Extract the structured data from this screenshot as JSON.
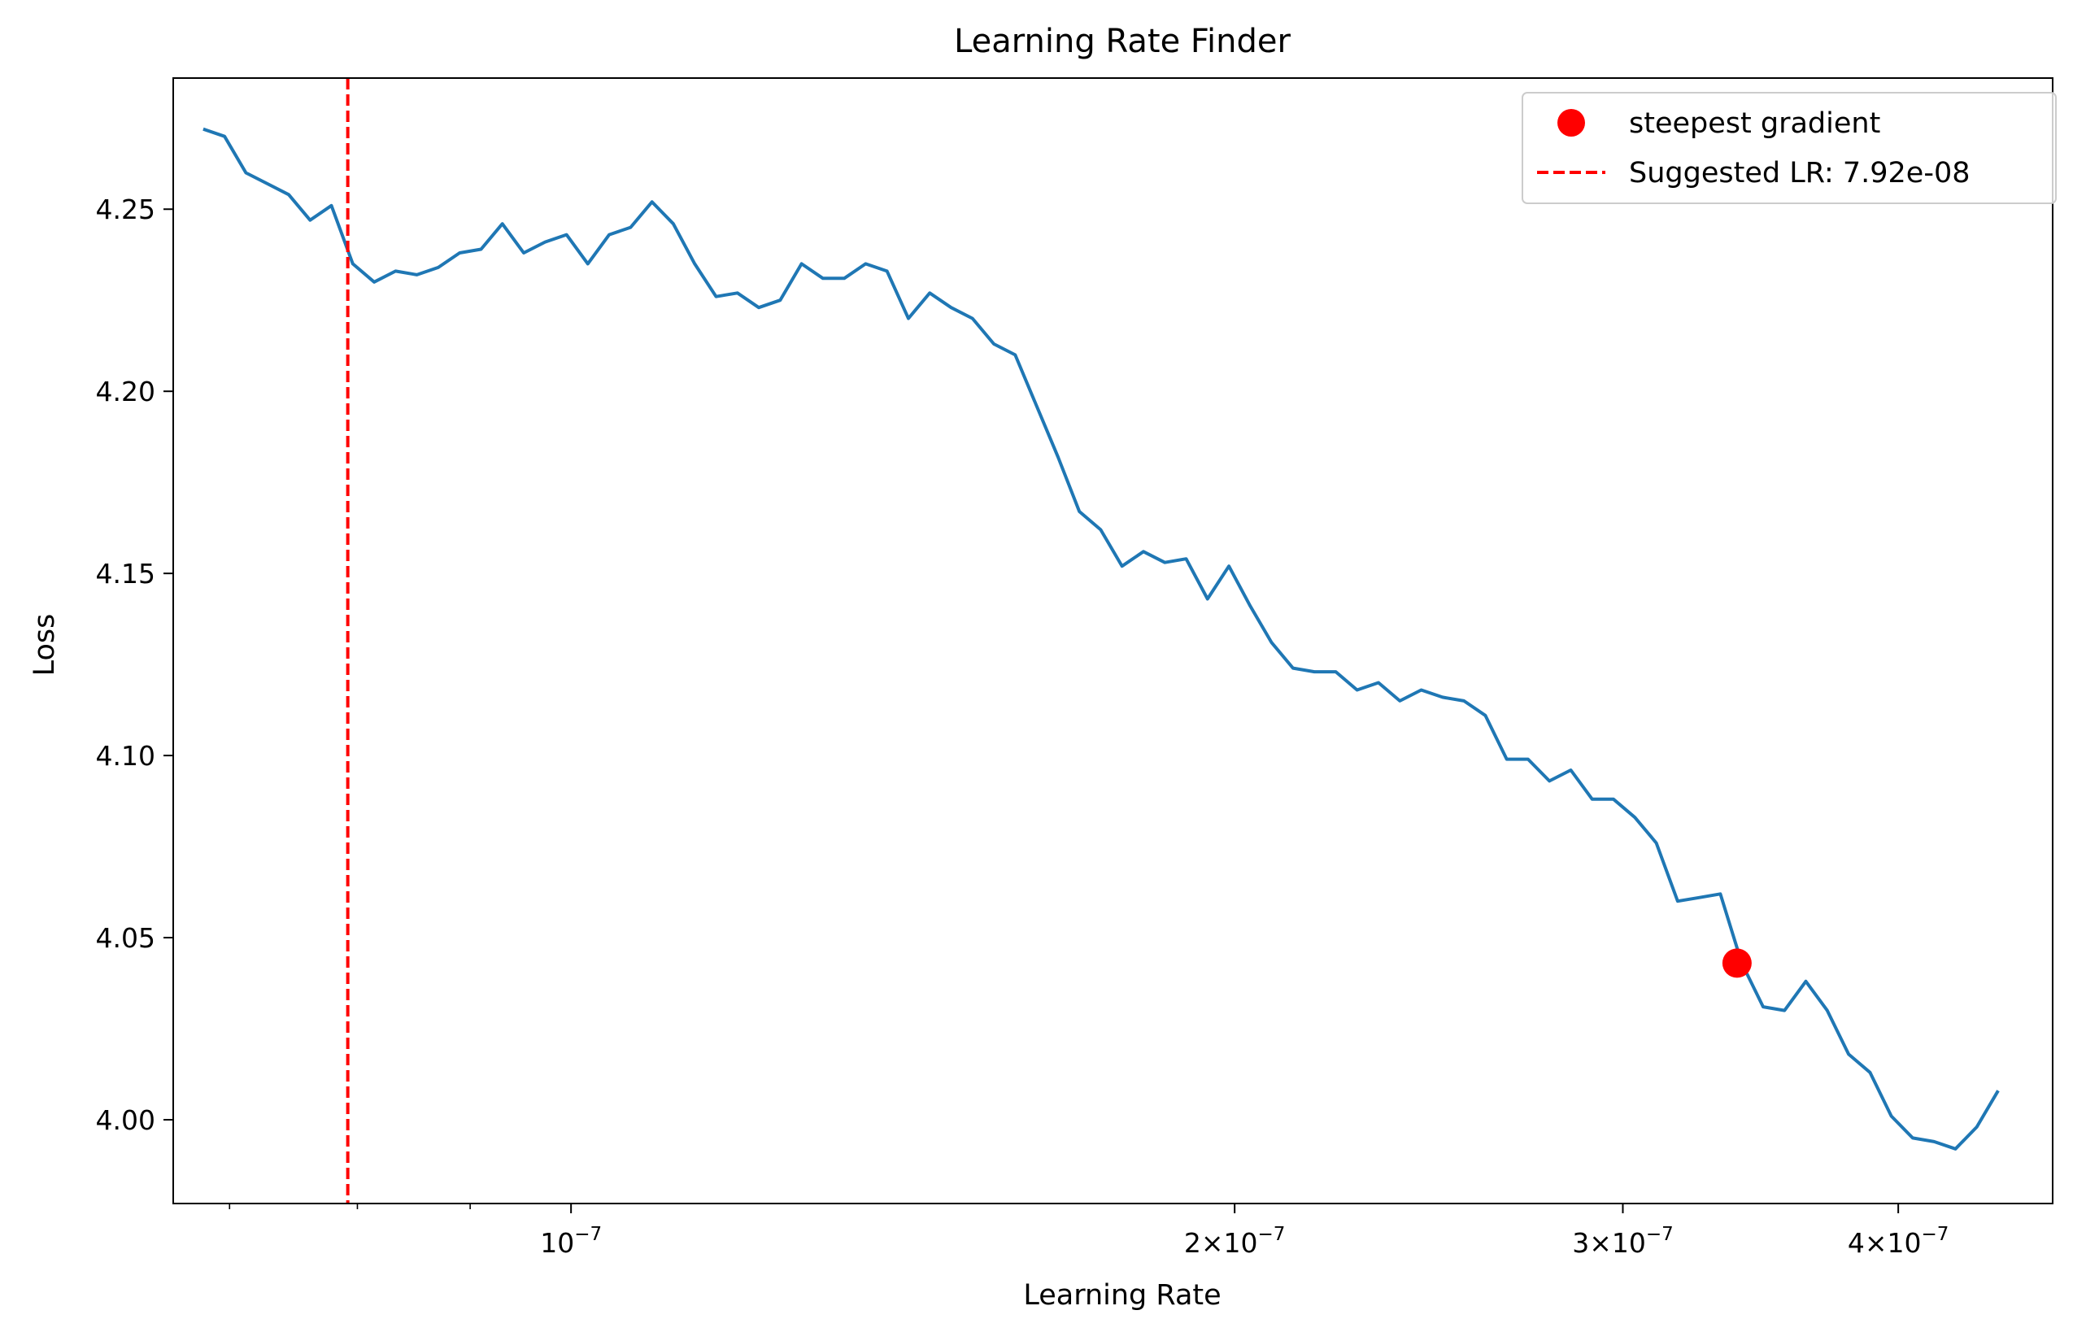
{
  "chart_data": {
    "type": "line",
    "title": "Learning Rate Finder",
    "xlabel": "Learning Rate",
    "ylabel": "Loss",
    "xscale": "log",
    "xlim": [
      6.6e-08,
      4.7e-07
    ],
    "ylim": [
      3.977,
      4.286
    ],
    "grid": false,
    "legend_position": "top-right",
    "y_ticks": [
      {
        "value": 4.0,
        "label": "4.00"
      },
      {
        "value": 4.05,
        "label": "4.05"
      },
      {
        "value": 4.1,
        "label": "4.10"
      },
      {
        "value": 4.15,
        "label": "4.15"
      },
      {
        "value": 4.2,
        "label": "4.20"
      },
      {
        "value": 4.25,
        "label": "4.25"
      }
    ],
    "x_major_ticks": [
      {
        "value": 1e-07,
        "base": "10",
        "exponent": "−7"
      },
      {
        "value": 2e-07,
        "base": "2×10",
        "exponent": "−7"
      },
      {
        "value": 3e-07,
        "base": "3×10",
        "exponent": "−7"
      },
      {
        "value": 4e-07,
        "base": "4×10",
        "exponent": "−7"
      }
    ],
    "x_minor_ticks": [
      7e-08,
      8e-08,
      9e-08
    ],
    "series": [
      {
        "name": "",
        "color": "#1f77b4",
        "lr_start": 6.81e-08,
        "lr_end": 4.44e-07,
        "values": [
          4.272,
          4.27,
          4.26,
          4.257,
          4.254,
          4.247,
          4.251,
          4.235,
          4.23,
          4.233,
          4.232,
          4.234,
          4.238,
          4.239,
          4.246,
          4.238,
          4.241,
          4.243,
          4.235,
          4.243,
          4.245,
          4.252,
          4.246,
          4.235,
          4.226,
          4.227,
          4.223,
          4.225,
          4.235,
          4.231,
          4.231,
          4.235,
          4.233,
          4.22,
          4.227,
          4.223,
          4.22,
          4.213,
          4.21,
          4.196,
          4.182,
          4.167,
          4.162,
          4.152,
          4.156,
          4.153,
          4.154,
          4.143,
          4.152,
          4.141,
          4.131,
          4.124,
          4.123,
          4.123,
          4.118,
          4.12,
          4.115,
          4.118,
          4.116,
          4.115,
          4.111,
          4.099,
          4.099,
          4.093,
          4.096,
          4.088,
          4.088,
          4.083,
          4.076,
          4.06,
          4.061,
          4.062,
          4.043,
          4.031,
          4.03,
          4.038,
          4.03,
          4.018,
          4.013,
          4.001,
          3.995,
          3.994,
          3.992,
          3.998,
          4.008
        ]
      }
    ],
    "steepest_point": {
      "x": 3.38e-07,
      "y": 4.043,
      "color": "#ff0000"
    },
    "suggested_lr": {
      "x": 7.92e-08,
      "color": "#ff0000"
    },
    "legend": [
      {
        "label": "steepest gradient"
      },
      {
        "label": "Suggested LR: 7.92e-08"
      }
    ]
  }
}
